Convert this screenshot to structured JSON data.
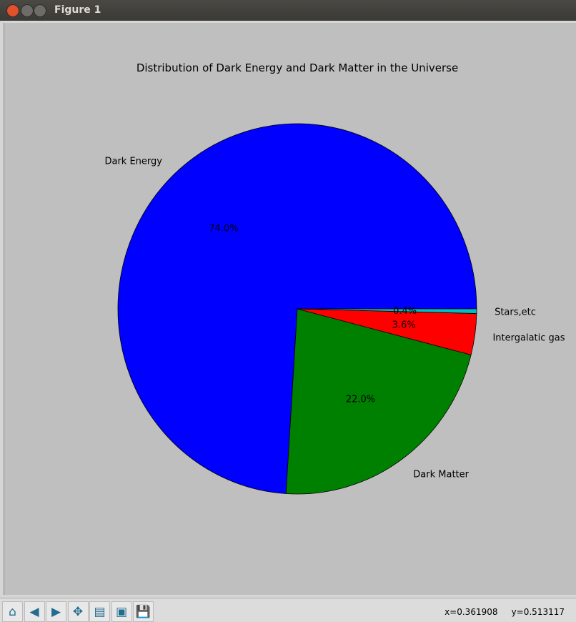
{
  "window": {
    "title": "Figure 1"
  },
  "toolbar": {
    "buttons": [
      {
        "name": "home-icon",
        "glyph": "⌂"
      },
      {
        "name": "back-icon",
        "glyph": "◀"
      },
      {
        "name": "forward-icon",
        "glyph": "▶"
      },
      {
        "name": "pan-icon",
        "glyph": "✥"
      },
      {
        "name": "zoom-rect-icon",
        "glyph": "▤"
      },
      {
        "name": "subplots-icon",
        "glyph": "▣"
      },
      {
        "name": "save-icon",
        "glyph": "💾"
      }
    ],
    "x_readout": "x=0.361908",
    "y_readout": "y=0.513117"
  },
  "chart_data": {
    "type": "pie",
    "title": "Distribution of Dark Energy and Dark Matter in the Universe",
    "categories": [
      "Dark Energy",
      "Dark Matter",
      "Intergalatic gas",
      "Stars,etc"
    ],
    "values": [
      74.0,
      22.0,
      3.6,
      0.4
    ],
    "pct_labels": [
      "74.0%",
      "22.0%",
      "3.6%",
      "0.4%"
    ],
    "colors": [
      "#0000ff",
      "#008000",
      "#ff0000",
      "#00bfbf"
    ],
    "start_angle": 0,
    "direction": "counterclockwise"
  }
}
